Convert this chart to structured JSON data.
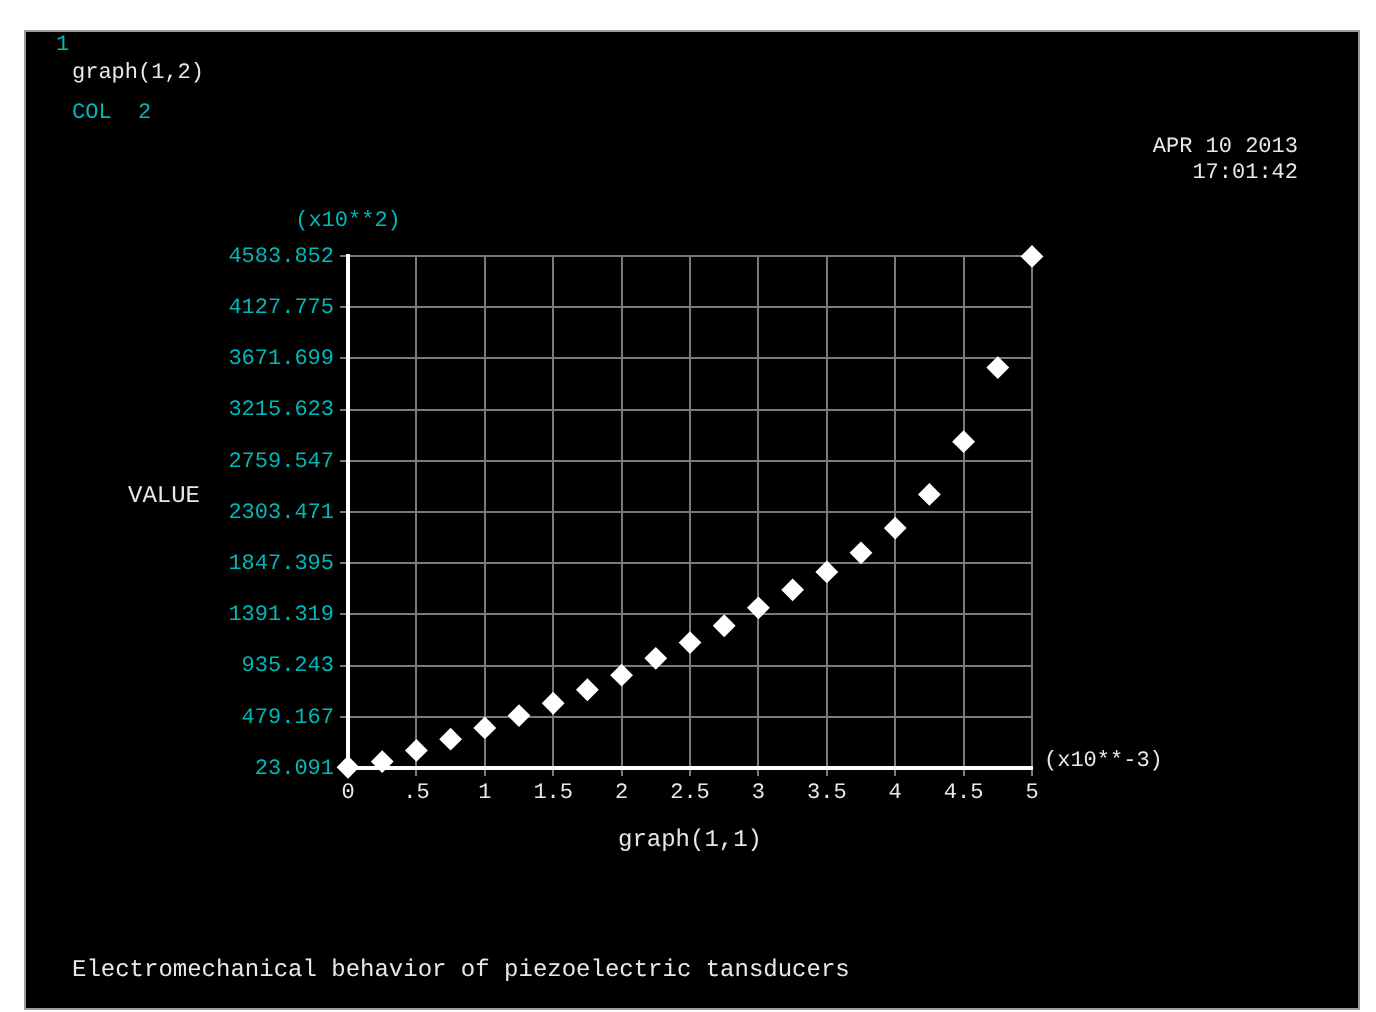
{
  "chart_data": {
    "type": "scatter",
    "title": "Electromechanical behavior of piezoelectric tansducers",
    "xlabel": "graph(1,1)",
    "ylabel": "VALUE",
    "annotations": [
      "1",
      "graph(1,2)",
      "COL  2",
      "APR 10 2013",
      "17:01:42",
      "(x10**2)",
      "(x10**-3)"
    ],
    "x": [
      0,
      0.25,
      0.5,
      0.75,
      1,
      1.25,
      1.5,
      1.75,
      2,
      2.25,
      2.5,
      2.75,
      3,
      3.25,
      3.5,
      3.75,
      4,
      4.25,
      4.5,
      4.75,
      5
    ],
    "series": [
      {
        "color": "#ffffff",
        "values": [
          30,
          80,
          180,
          280,
          380,
          490,
          600,
          720,
          850,
          1000,
          1140,
          1290,
          1450,
          1610,
          1770,
          1940,
          2160,
          2460,
          2930,
          3590,
          4580
        ]
      }
    ],
    "xlim": [
      0,
      5
    ],
    "xticks": [
      0,
      {
        "value": 0.5,
        "label": ".5"
      },
      1,
      1.5,
      2,
      2.5,
      3,
      3.5,
      4,
      4.5,
      5
    ],
    "ylim": [
      23.091,
      4583.852
    ],
    "yticks": [
      23.091,
      479.167,
      935.243,
      1391.319,
      1847.395,
      2303.471,
      2759.547,
      3215.623,
      3671.699,
      4127.775,
      4583.852
    ],
    "grid": true,
    "legend": false,
    "marker": "diamond"
  }
}
